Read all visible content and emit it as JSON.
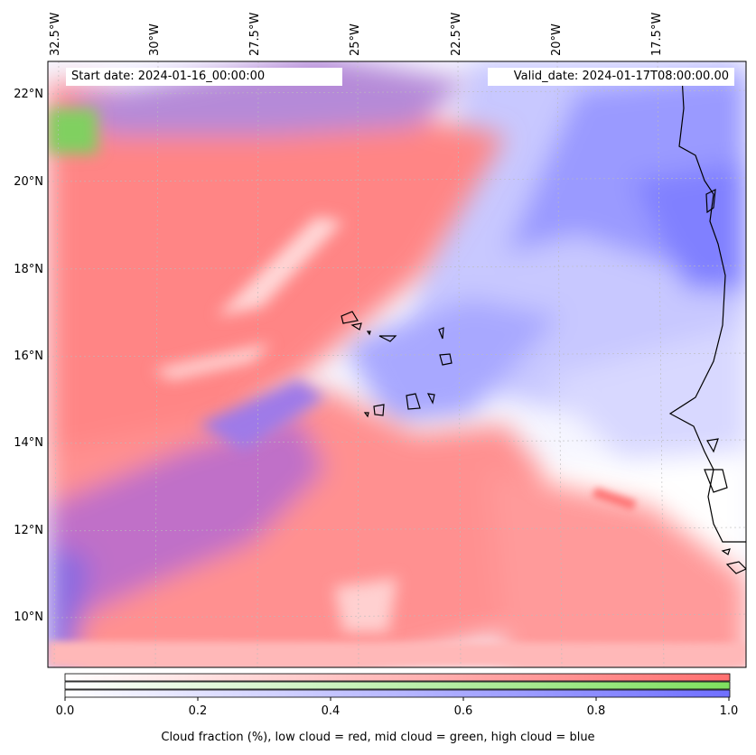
{
  "map": {
    "start_date": "Start date: 2024-01-16_00:00:00",
    "valid_date": "Valid_date: 2024-01-17T08:00:00.00",
    "lon_labels": [
      "32.5°W",
      "30°W",
      "27.5°W",
      "25°W",
      "22.5°W",
      "20°W",
      "17.5°W"
    ],
    "lat_labels": [
      "22°N",
      "20°N",
      "18°N",
      "16°N",
      "14°N",
      "12°N",
      "10°N"
    ],
    "colors": {
      "low_cloud": "#ff7f7f",
      "mid_cloud": "#7fdf5f",
      "high_cloud": "#7f7fff",
      "coast": "#000000"
    }
  },
  "colorbar": {
    "ticks": [
      "0.0",
      "0.2",
      "0.4",
      "0.6",
      "0.8",
      "1.0"
    ],
    "label": "Cloud fraction (%), low cloud = red, mid cloud = green, high cloud = blue"
  }
}
